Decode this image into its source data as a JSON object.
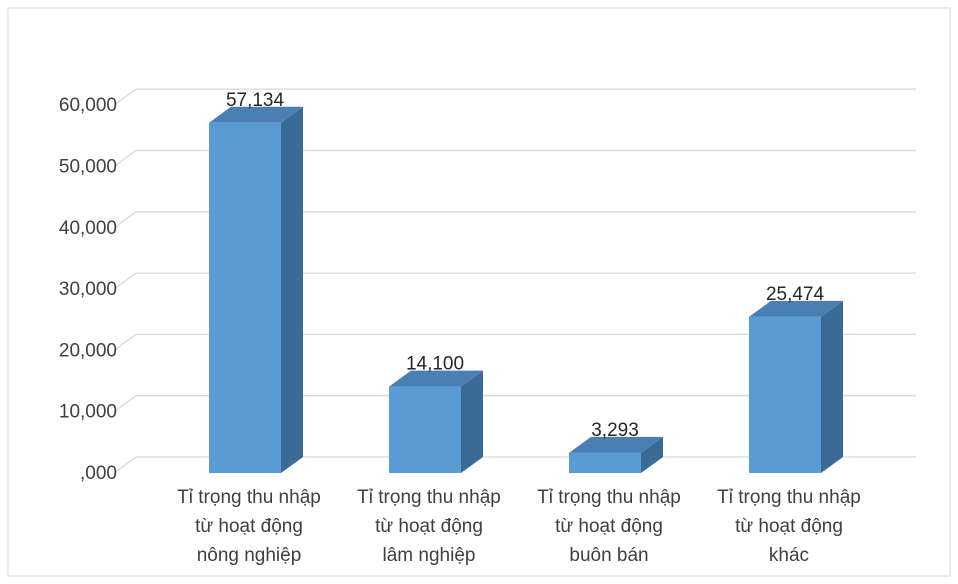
{
  "chart_data": {
    "type": "bar",
    "style": "3d-column",
    "title": "",
    "xlabel": "",
    "ylabel": "",
    "categories": [
      [
        "Tỉ trọng thu nhập",
        "từ hoạt động",
        "nông nghiệp"
      ],
      [
        "Tỉ trọng thu nhập",
        "từ hoạt động",
        "lâm nghiệp"
      ],
      [
        "Tỉ trọng thu nhập",
        "từ hoạt động",
        "buôn bán"
      ],
      [
        "Tỉ trọng thu nhập",
        "từ hoạt động",
        "khác"
      ]
    ],
    "values": [
      57.134,
      14.1,
      3.293,
      25.474
    ],
    "value_labels": [
      "57,134",
      "14,100",
      "3,293",
      "25,474"
    ],
    "y_ticks": [
      0,
      10,
      20,
      30,
      40,
      50,
      60
    ],
    "y_tick_labels": [
      ",000",
      "10,000",
      "20,000",
      "30,000",
      "40,000",
      "50,000",
      "60,000"
    ],
    "ylim": [
      0,
      70
    ],
    "grid": true,
    "legend": "none",
    "colors": {
      "bar_front": "#5B9BD5",
      "bar_side": "#3A6A96",
      "bar_top": "#4A7FB3",
      "gridline": "#D9D9D9",
      "border": "#D9D9D9"
    }
  }
}
